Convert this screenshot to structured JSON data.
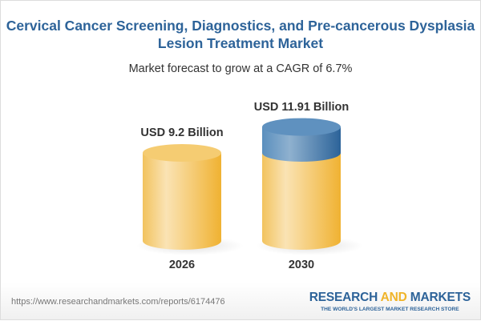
{
  "header": {
    "title": "Cervical Cancer Screening, Diagnostics, and Pre-cancerous Dysplasia Lesion Treatment Market",
    "subtitle": "Market forecast to grow at a CAGR of 6.7%"
  },
  "chart_data": {
    "type": "bar",
    "categories": [
      "2026",
      "2030"
    ],
    "values": [
      9.2,
      11.91
    ],
    "data_labels": [
      "USD 9.2 Billion",
      "USD 11.91 Billion"
    ],
    "unit": "USD Billion",
    "colors": {
      "base": "#f2c35e",
      "growth": "#4f87b8"
    }
  },
  "footer": {
    "url": "https://www.researchandmarkets.com/reports/6174476",
    "logo_part1": "RESEARCH ",
    "logo_part2": "AND",
    "logo_part3": " MARKETS",
    "tagline": "THE WORLD'S LARGEST MARKET RESEARCH STORE"
  }
}
